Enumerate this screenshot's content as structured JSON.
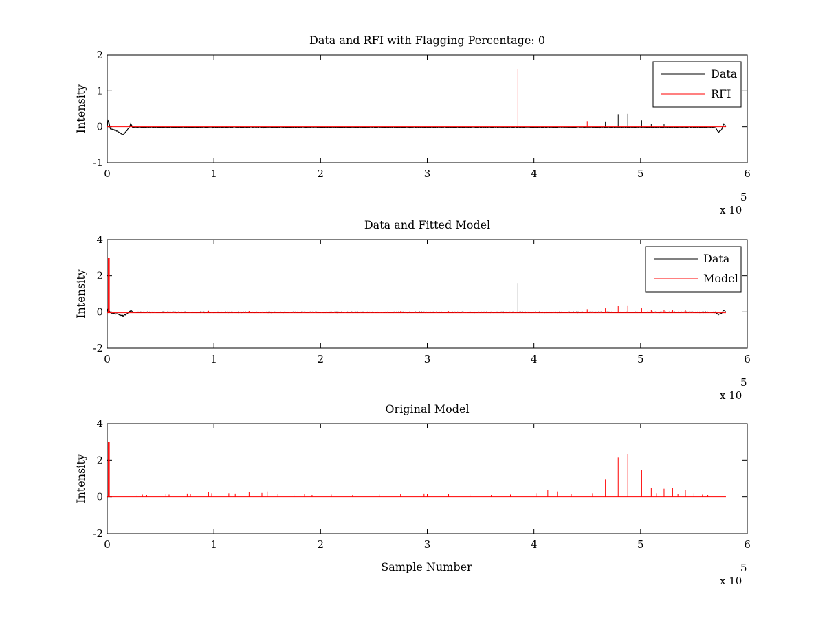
{
  "colors": {
    "data": "#000000",
    "red": "#ff0000",
    "axis": "#000000",
    "background": "#ffffff"
  },
  "chart_data": [
    {
      "type": "line",
      "title": "Data and RFI with Flagging Percentage: 0",
      "xlabel": "",
      "ylabel": "Intensity",
      "xlim": [
        0,
        6
      ],
      "ylim": [
        -1,
        2
      ],
      "xticks": [
        "0",
        "1",
        "2",
        "3",
        "4",
        "5",
        "6"
      ],
      "yticks": [
        "-1",
        "0",
        "1",
        "2"
      ],
      "x_multiplier_text": "x 10",
      "x_multiplier_exp": "5",
      "legend": {
        "position": "top-right",
        "entries": [
          "Data",
          "RFI"
        ]
      },
      "series": [
        {
          "name": "Data",
          "color": "#000000",
          "baseline": -0.02,
          "noise": 0.01,
          "points": [
            [
              0,
              0.0
            ],
            [
              0.01,
              0.2
            ],
            [
              0.03,
              -0.06
            ],
            [
              0.08,
              -0.1
            ],
            [
              0.15,
              -0.22
            ],
            [
              0.2,
              -0.05
            ],
            [
              0.22,
              0.08
            ],
            [
              0.24,
              -0.02
            ],
            [
              5.7,
              -0.02
            ],
            [
              5.73,
              -0.15
            ],
            [
              5.76,
              -0.08
            ],
            [
              5.78,
              0.1
            ],
            [
              5.8,
              0.0
            ]
          ],
          "spikes": [
            [
              4.67,
              0.15
            ],
            [
              4.79,
              0.35
            ],
            [
              4.88,
              0.36
            ],
            [
              5.01,
              0.18
            ],
            [
              5.1,
              0.08
            ],
            [
              5.22,
              0.07
            ]
          ]
        },
        {
          "name": "RFI",
          "color": "#ff0000",
          "baseline": 0,
          "spikes": [
            [
              3.85,
              1.6
            ],
            [
              4.5,
              0.16
            ]
          ]
        }
      ]
    },
    {
      "type": "line",
      "title": "Data and Fitted Model",
      "xlabel": "",
      "ylabel": "Intensity",
      "xlim": [
        0,
        6
      ],
      "ylim": [
        -2,
        4
      ],
      "xticks": [
        "0",
        "1",
        "2",
        "3",
        "4",
        "5",
        "6"
      ],
      "yticks": [
        "-2",
        "0",
        "2",
        "4"
      ],
      "x_multiplier_text": "x 10",
      "x_multiplier_exp": "5",
      "legend": {
        "position": "top-right",
        "entries": [
          "Data",
          "Model"
        ]
      },
      "series": [
        {
          "name": "Data",
          "color": "#000000",
          "baseline": -0.02,
          "noise": 0.02,
          "points": [
            [
              0,
              0.0
            ],
            [
              0.01,
              0.2
            ],
            [
              0.03,
              -0.06
            ],
            [
              0.08,
              -0.1
            ],
            [
              0.15,
              -0.22
            ],
            [
              0.2,
              -0.05
            ],
            [
              0.22,
              0.08
            ],
            [
              0.24,
              -0.02
            ],
            [
              5.7,
              -0.02
            ],
            [
              5.73,
              -0.15
            ],
            [
              5.76,
              -0.08
            ],
            [
              5.78,
              0.1
            ],
            [
              5.8,
              0.0
            ]
          ],
          "spikes": [
            [
              3.85,
              1.6
            ]
          ]
        },
        {
          "name": "Model",
          "color": "#ff0000",
          "baseline": -0.05,
          "spikes": [
            [
              0.01,
              3.0
            ],
            [
              0.02,
              3.0
            ],
            [
              4.5,
              0.15
            ],
            [
              4.67,
              0.2
            ],
            [
              4.79,
              0.35
            ],
            [
              4.88,
              0.36
            ],
            [
              5.01,
              0.2
            ],
            [
              5.1,
              0.1
            ],
            [
              5.22,
              0.1
            ],
            [
              5.3,
              0.1
            ],
            [
              5.42,
              0.1
            ],
            [
              0.95,
              0.06
            ],
            [
              1.33,
              0.05
            ],
            [
              2.75,
              0.04
            ],
            [
              3.2,
              0.04
            ]
          ]
        }
      ]
    },
    {
      "type": "line",
      "title": "Original Model",
      "xlabel": "Sample Number",
      "ylabel": "Intensity",
      "xlim": [
        0,
        6
      ],
      "ylim": [
        -2,
        4
      ],
      "xticks": [
        "0",
        "1",
        "2",
        "3",
        "4",
        "5",
        "6"
      ],
      "yticks": [
        "-2",
        "0",
        "2",
        "4"
      ],
      "x_multiplier_text": "x 10",
      "x_multiplier_exp": "5",
      "series": [
        {
          "color": "#ff0000",
          "baseline": 0,
          "spikes": [
            [
              0.01,
              3.0
            ],
            [
              0.02,
              3.0
            ],
            [
              0.28,
              0.1
            ],
            [
              0.33,
              0.12
            ],
            [
              0.37,
              0.1
            ],
            [
              0.55,
              0.15
            ],
            [
              0.58,
              0.12
            ],
            [
              0.75,
              0.18
            ],
            [
              0.78,
              0.15
            ],
            [
              0.95,
              0.25
            ],
            [
              0.98,
              0.2
            ],
            [
              1.14,
              0.2
            ],
            [
              1.2,
              0.18
            ],
            [
              1.33,
              0.25
            ],
            [
              1.45,
              0.22
            ],
            [
              1.5,
              0.3
            ],
            [
              1.6,
              0.15
            ],
            [
              1.75,
              0.12
            ],
            [
              1.85,
              0.15
            ],
            [
              1.92,
              0.1
            ],
            [
              2.1,
              0.12
            ],
            [
              2.3,
              0.1
            ],
            [
              2.55,
              0.12
            ],
            [
              2.75,
              0.15
            ],
            [
              2.97,
              0.18
            ],
            [
              3.0,
              0.15
            ],
            [
              3.2,
              0.15
            ],
            [
              3.4,
              0.12
            ],
            [
              3.6,
              0.1
            ],
            [
              3.78,
              0.12
            ],
            [
              4.02,
              0.2
            ],
            [
              4.13,
              0.4
            ],
            [
              4.22,
              0.3
            ],
            [
              4.35,
              0.15
            ],
            [
              4.45,
              0.15
            ],
            [
              4.55,
              0.2
            ],
            [
              4.67,
              0.95
            ],
            [
              4.79,
              2.15
            ],
            [
              4.88,
              2.35
            ],
            [
              5.01,
              1.45
            ],
            [
              5.1,
              0.5
            ],
            [
              5.15,
              0.2
            ],
            [
              5.22,
              0.45
            ],
            [
              5.3,
              0.5
            ],
            [
              5.35,
              0.15
            ],
            [
              5.42,
              0.4
            ],
            [
              5.5,
              0.2
            ],
            [
              5.58,
              0.12
            ],
            [
              5.63,
              0.1
            ]
          ]
        }
      ]
    }
  ]
}
